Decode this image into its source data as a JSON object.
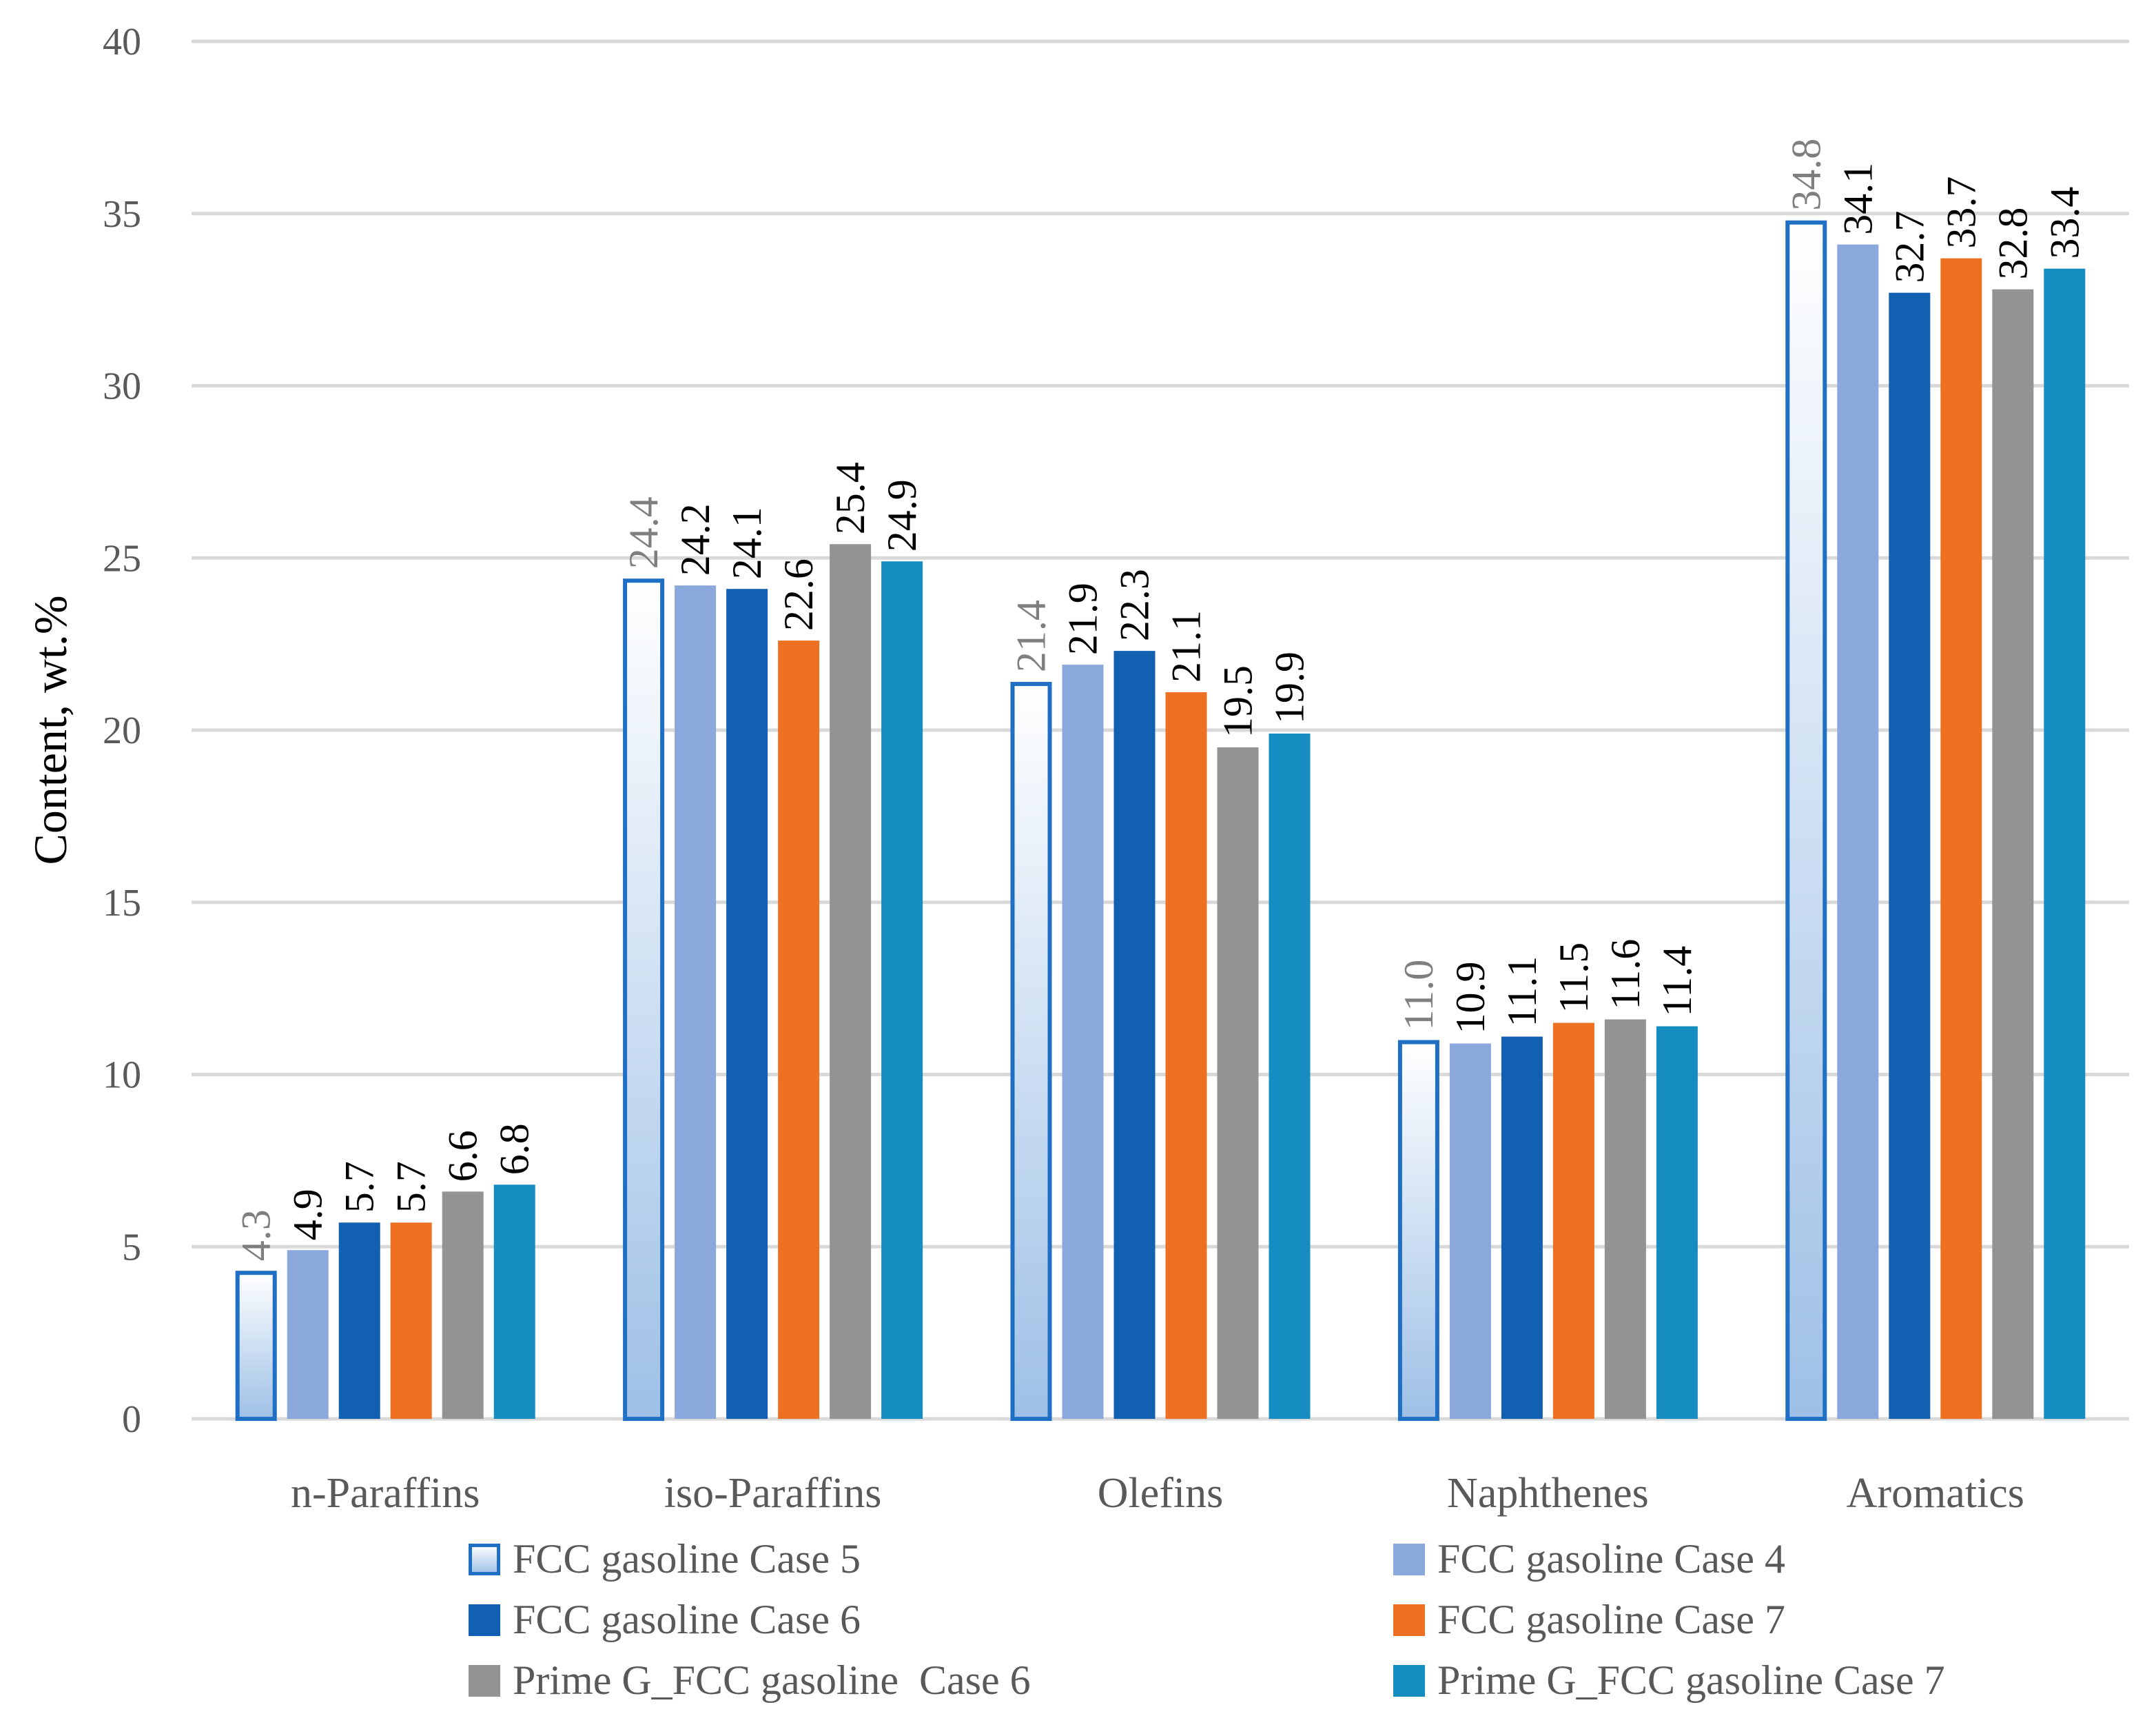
{
  "chart_data": {
    "type": "bar",
    "title": "",
    "xlabel": "",
    "ylabel": "Content, wt.%",
    "ylim": [
      0,
      40
    ],
    "yticks": [
      0,
      5,
      10,
      15,
      20,
      25,
      30,
      35,
      40
    ],
    "grid": true,
    "legend_position": "bottom",
    "categories": [
      "n-Paraffins",
      "iso-Paraffins",
      "Olefins",
      "Naphthenes",
      "Aromatics"
    ],
    "series": [
      {
        "name": "FCC gasoline Case 5",
        "values": [
          4.3,
          24.4,
          21.4,
          11.0,
          34.8
        ],
        "labels": [
          "4.3",
          "24.4",
          "21.4",
          "11.0",
          "34.8"
        ],
        "color": "#1f6fc5",
        "style": "gradient-outline",
        "label_color": "#7f7f7f"
      },
      {
        "name": "FCC gasoline Case 4",
        "values": [
          4.9,
          24.2,
          21.9,
          10.9,
          34.1
        ],
        "labels": [
          "4.9",
          "24.2",
          "21.9",
          "10.9",
          "34.1"
        ],
        "color": "#8aa8dc",
        "style": "solid",
        "label_color": "#000000"
      },
      {
        "name": "FCC gasoline Case 6",
        "values": [
          5.7,
          24.1,
          22.3,
          11.1,
          32.7
        ],
        "labels": [
          "5.7",
          "24.1",
          "22.3",
          "11.1",
          "32.7"
        ],
        "color": "#1260b2",
        "style": "solid",
        "label_color": "#000000"
      },
      {
        "name": "FCC gasoline Case 7",
        "values": [
          5.7,
          22.6,
          21.1,
          11.5,
          33.7
        ],
        "labels": [
          "5.7",
          "22.6",
          "21.1",
          "11.5",
          "33.7"
        ],
        "color": "#ee7123",
        "style": "solid",
        "label_color": "#000000"
      },
      {
        "name": "Prime G_FCC gasoline  Case 6",
        "values": [
          6.6,
          25.4,
          19.5,
          11.6,
          32.8
        ],
        "labels": [
          "6.6",
          "25.4",
          "19.5",
          "11.6",
          "32.8"
        ],
        "color": "#939393",
        "style": "solid",
        "label_color": "#000000"
      },
      {
        "name": "Prime G_FCC gasoline Case 7",
        "values": [
          6.8,
          24.9,
          19.9,
          11.4,
          33.4
        ],
        "labels": [
          "6.8",
          "24.9",
          "19.9",
          "11.4",
          "33.4"
        ],
        "color": "#168dc0",
        "style": "solid",
        "label_color": "#000000"
      }
    ]
  }
}
